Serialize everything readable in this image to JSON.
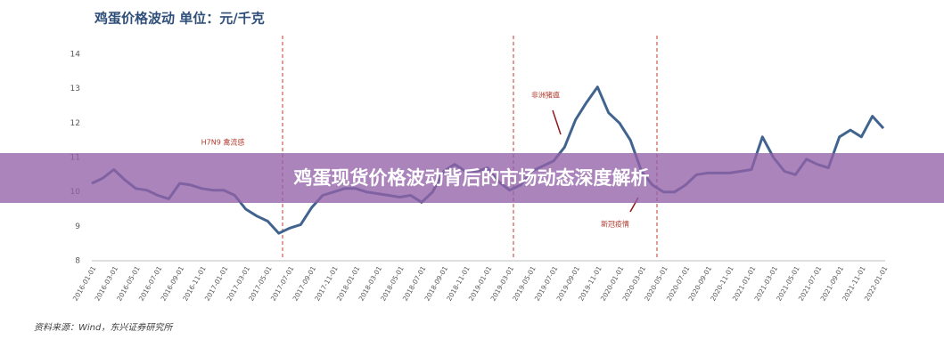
{
  "chart_data": {
    "type": "line",
    "title": "鸡蛋价格波动 单位：元/千克",
    "categories": [
      "2016-01-01",
      null,
      "2016-03-01",
      null,
      "2016-05-01",
      null,
      "2016-07-01",
      null,
      "2016-09-01",
      null,
      "2016-11-01",
      null,
      "2017-01-01",
      null,
      "2017-03-01",
      null,
      "2017-05-01",
      null,
      "2017-07-01",
      null,
      "2017-09-01",
      null,
      "2017-11-01",
      null,
      "2018-01-01",
      null,
      "2018-03-01",
      null,
      "2018-05-01",
      null,
      "2018-07-01",
      null,
      "2018-09-01",
      null,
      "2018-11-01",
      null,
      "2019-01-01",
      null,
      "2019-03-01",
      null,
      "2019-05-01",
      null,
      "2019-07-01",
      null,
      "2019-09-01",
      null,
      "2019-11-01",
      null,
      "2020-01-01",
      null,
      "2020-03-01",
      null,
      "2020-05-01",
      null,
      "2020-07-01",
      null,
      "2020-09-01",
      null,
      "2020-11-01",
      null,
      "2021-01-01",
      null,
      "2021-03-01",
      null,
      "2021-05-01",
      null,
      "2021-07-01",
      null,
      "2021-09-01",
      null,
      "2021-11-01",
      null,
      "2022-01-01"
    ],
    "values": [
      10.25,
      10.4,
      10.65,
      10.35,
      10.1,
      10.05,
      9.9,
      9.8,
      10.25,
      10.2,
      10.1,
      10.05,
      10.05,
      9.9,
      9.5,
      9.3,
      9.15,
      8.8,
      8.95,
      9.05,
      9.55,
      9.9,
      10.0,
      10.1,
      10.1,
      10.0,
      9.95,
      9.9,
      9.85,
      9.9,
      9.7,
      10.0,
      10.6,
      10.8,
      10.6,
      10.6,
      10.7,
      10.3,
      10.05,
      10.2,
      10.6,
      10.75,
      10.9,
      11.3,
      12.1,
      12.6,
      13.05,
      12.3,
      12.0,
      11.5,
      10.6,
      10.2,
      10.0,
      10.0,
      10.2,
      10.5,
      10.55,
      10.55,
      10.55,
      10.6,
      10.65,
      11.6,
      11.0,
      10.6,
      10.5,
      10.95,
      10.8,
      10.7,
      11.6,
      11.8,
      11.6,
      12.2,
      11.85
    ],
    "color": "#41648f",
    "ylim": [
      8,
      14
    ],
    "yticks": [
      8,
      9,
      10,
      11,
      12,
      13,
      14
    ],
    "annotations": [
      "H7N9 禽流感",
      "非洲猪瘟",
      "新冠疫情"
    ],
    "source": "资料来源：Wind，东兴证券研究所"
  },
  "banner": {
    "title": "鸡蛋现货价格波动背后的市场动态深度解析"
  }
}
